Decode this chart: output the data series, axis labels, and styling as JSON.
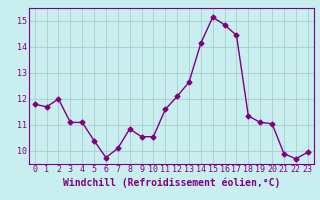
{
  "x": [
    0,
    1,
    2,
    3,
    4,
    5,
    6,
    7,
    8,
    9,
    10,
    11,
    12,
    13,
    14,
    15,
    16,
    17,
    18,
    19,
    20,
    21,
    22,
    23
  ],
  "y": [
    11.8,
    11.7,
    12.0,
    11.1,
    11.1,
    10.4,
    9.75,
    10.1,
    10.85,
    10.55,
    10.55,
    11.6,
    12.1,
    12.65,
    14.15,
    15.15,
    14.85,
    14.45,
    11.35,
    11.1,
    11.05,
    9.9,
    9.7,
    9.95
  ],
  "line_color": "#800080",
  "marker": "D",
  "marker_size": 2.5,
  "bg_color": "#c8eef0",
  "grid_color": "#aacccc",
  "xlabel": "Windchill (Refroidissement éolien,°C)",
  "xlabel_fontsize": 7,
  "ylim": [
    9.5,
    15.5
  ],
  "xlim": [
    -0.5,
    23.5
  ],
  "yticks": [
    10,
    11,
    12,
    13,
    14,
    15
  ],
  "xticks": [
    0,
    1,
    2,
    3,
    4,
    5,
    6,
    7,
    8,
    9,
    10,
    11,
    12,
    13,
    14,
    15,
    16,
    17,
    18,
    19,
    20,
    21,
    22,
    23
  ],
  "tick_fontsize": 6,
  "line_width": 1.0
}
